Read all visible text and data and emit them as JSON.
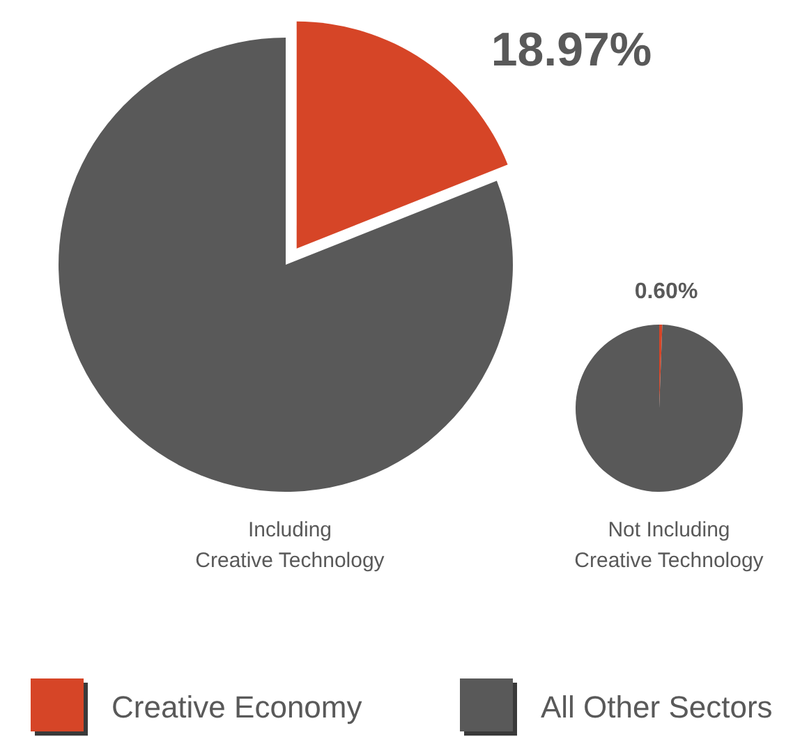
{
  "chart_data": {
    "type": "pie",
    "categories": [
      "Creative Economy",
      "All Other Sectors"
    ],
    "colors": [
      "#d64527",
      "#595959"
    ],
    "legend": "bottom",
    "series": [
      {
        "name": "Including\nCreative Technology",
        "values": [
          18.97,
          81.03
        ],
        "value_labels": [
          "18.97%",
          null
        ]
      },
      {
        "name": "Not Including\nCreative Technology",
        "values": [
          0.6,
          99.4
        ],
        "value_labels": [
          "0.60%",
          null
        ]
      }
    ]
  }
}
